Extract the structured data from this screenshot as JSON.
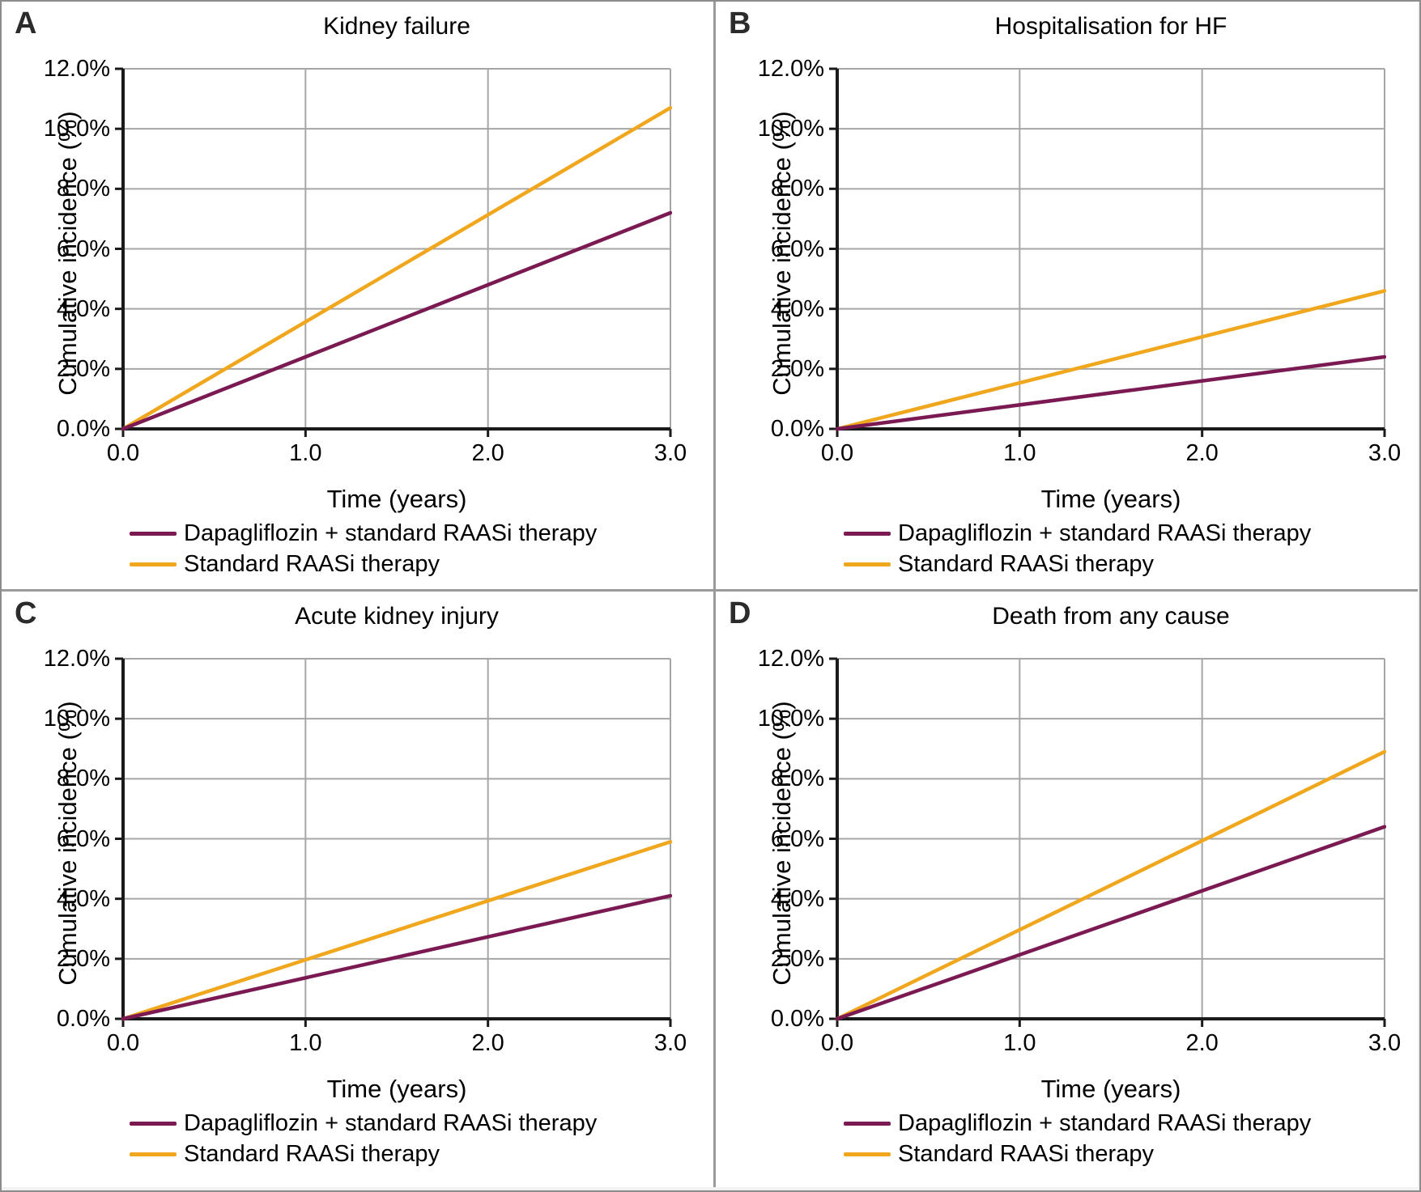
{
  "figure": {
    "panels": [
      {
        "label": "A",
        "title": "Kidney failure"
      },
      {
        "label": "B",
        "title": "Hospitalisation for HF"
      },
      {
        "label": "C",
        "title": "Acute kidney injury"
      },
      {
        "label": "D",
        "title": "Death from any cause"
      }
    ],
    "axes": {
      "y_label": "Cumulative incidence (%)",
      "x_label": "Time (years)",
      "y_tick_labels": [
        "12.0%",
        "10.0%",
        "8.0%",
        "6.0%",
        "4.0%",
        "2.0%",
        "0.0%"
      ],
      "x_tick_labels": [
        "0.0",
        "1.0",
        "2.0",
        "3.0"
      ]
    },
    "legend": [
      {
        "label": "Dapagliflozin + standard RAASi therapy",
        "color": "#7b1953"
      },
      {
        "label": "Standard RAASi therapy",
        "color": "#f0a71e"
      }
    ],
    "colors": {
      "gridline": "#a6a6a6",
      "axis": "#1a1a1a",
      "dapagliflozin_line": "#7b1953",
      "standard_line": "#f0a71e"
    }
  },
  "chart_data": [
    {
      "type": "line",
      "title": "Kidney failure",
      "xlabel": "Time (years)",
      "ylabel": "Cumulative incidence (%)",
      "xlim": [
        0,
        3
      ],
      "ylim": [
        0,
        12
      ],
      "x_ticks": [
        0.0,
        1.0,
        2.0,
        3.0
      ],
      "y_tick_step_pct": 2,
      "grid": true,
      "legend_position": "bottom",
      "x": [
        0,
        3
      ],
      "series": [
        {
          "name": "Dapagliflozin + standard RAASi therapy",
          "values_pct": [
            0,
            7.2
          ],
          "color": "#7b1953"
        },
        {
          "name": "Standard RAASi therapy",
          "values_pct": [
            0,
            10.7
          ],
          "color": "#f0a71e"
        }
      ]
    },
    {
      "type": "line",
      "title": "Hospitalisation for HF",
      "xlabel": "Time (years)",
      "ylabel": "Cumulative incidence (%)",
      "xlim": [
        0,
        3
      ],
      "ylim": [
        0,
        12
      ],
      "x_ticks": [
        0.0,
        1.0,
        2.0,
        3.0
      ],
      "y_tick_step_pct": 2,
      "grid": true,
      "legend_position": "bottom",
      "x": [
        0,
        3
      ],
      "series": [
        {
          "name": "Dapagliflozin + standard RAASi therapy",
          "values_pct": [
            0,
            2.4
          ],
          "color": "#7b1953"
        },
        {
          "name": "Standard RAASi therapy",
          "values_pct": [
            0,
            4.6
          ],
          "color": "#f0a71e"
        }
      ]
    },
    {
      "type": "line",
      "title": "Acute kidney injury",
      "xlabel": "Time (years)",
      "ylabel": "Cumulative incidence (%)",
      "xlim": [
        0,
        3
      ],
      "ylim": [
        0,
        12
      ],
      "x_ticks": [
        0.0,
        1.0,
        2.0,
        3.0
      ],
      "y_tick_step_pct": 2,
      "grid": true,
      "legend_position": "bottom",
      "x": [
        0,
        3
      ],
      "series": [
        {
          "name": "Dapagliflozin + standard RAASi therapy",
          "values_pct": [
            0,
            4.1
          ],
          "color": "#7b1953"
        },
        {
          "name": "Standard RAASi therapy",
          "values_pct": [
            0,
            5.9
          ],
          "color": "#f0a71e"
        }
      ]
    },
    {
      "type": "line",
      "title": "Death from any cause",
      "xlabel": "Time (years)",
      "ylabel": "Cumulative incidence (%)",
      "xlim": [
        0,
        3
      ],
      "ylim": [
        0,
        12
      ],
      "x_ticks": [
        0.0,
        1.0,
        2.0,
        3.0
      ],
      "y_tick_step_pct": 2,
      "grid": true,
      "legend_position": "bottom",
      "x": [
        0,
        3
      ],
      "series": [
        {
          "name": "Dapagliflozin + standard RAASi therapy",
          "values_pct": [
            0,
            6.4
          ],
          "color": "#7b1953"
        },
        {
          "name": "Standard RAASi therapy",
          "values_pct": [
            0,
            8.9
          ],
          "color": "#f0a71e"
        }
      ]
    }
  ]
}
